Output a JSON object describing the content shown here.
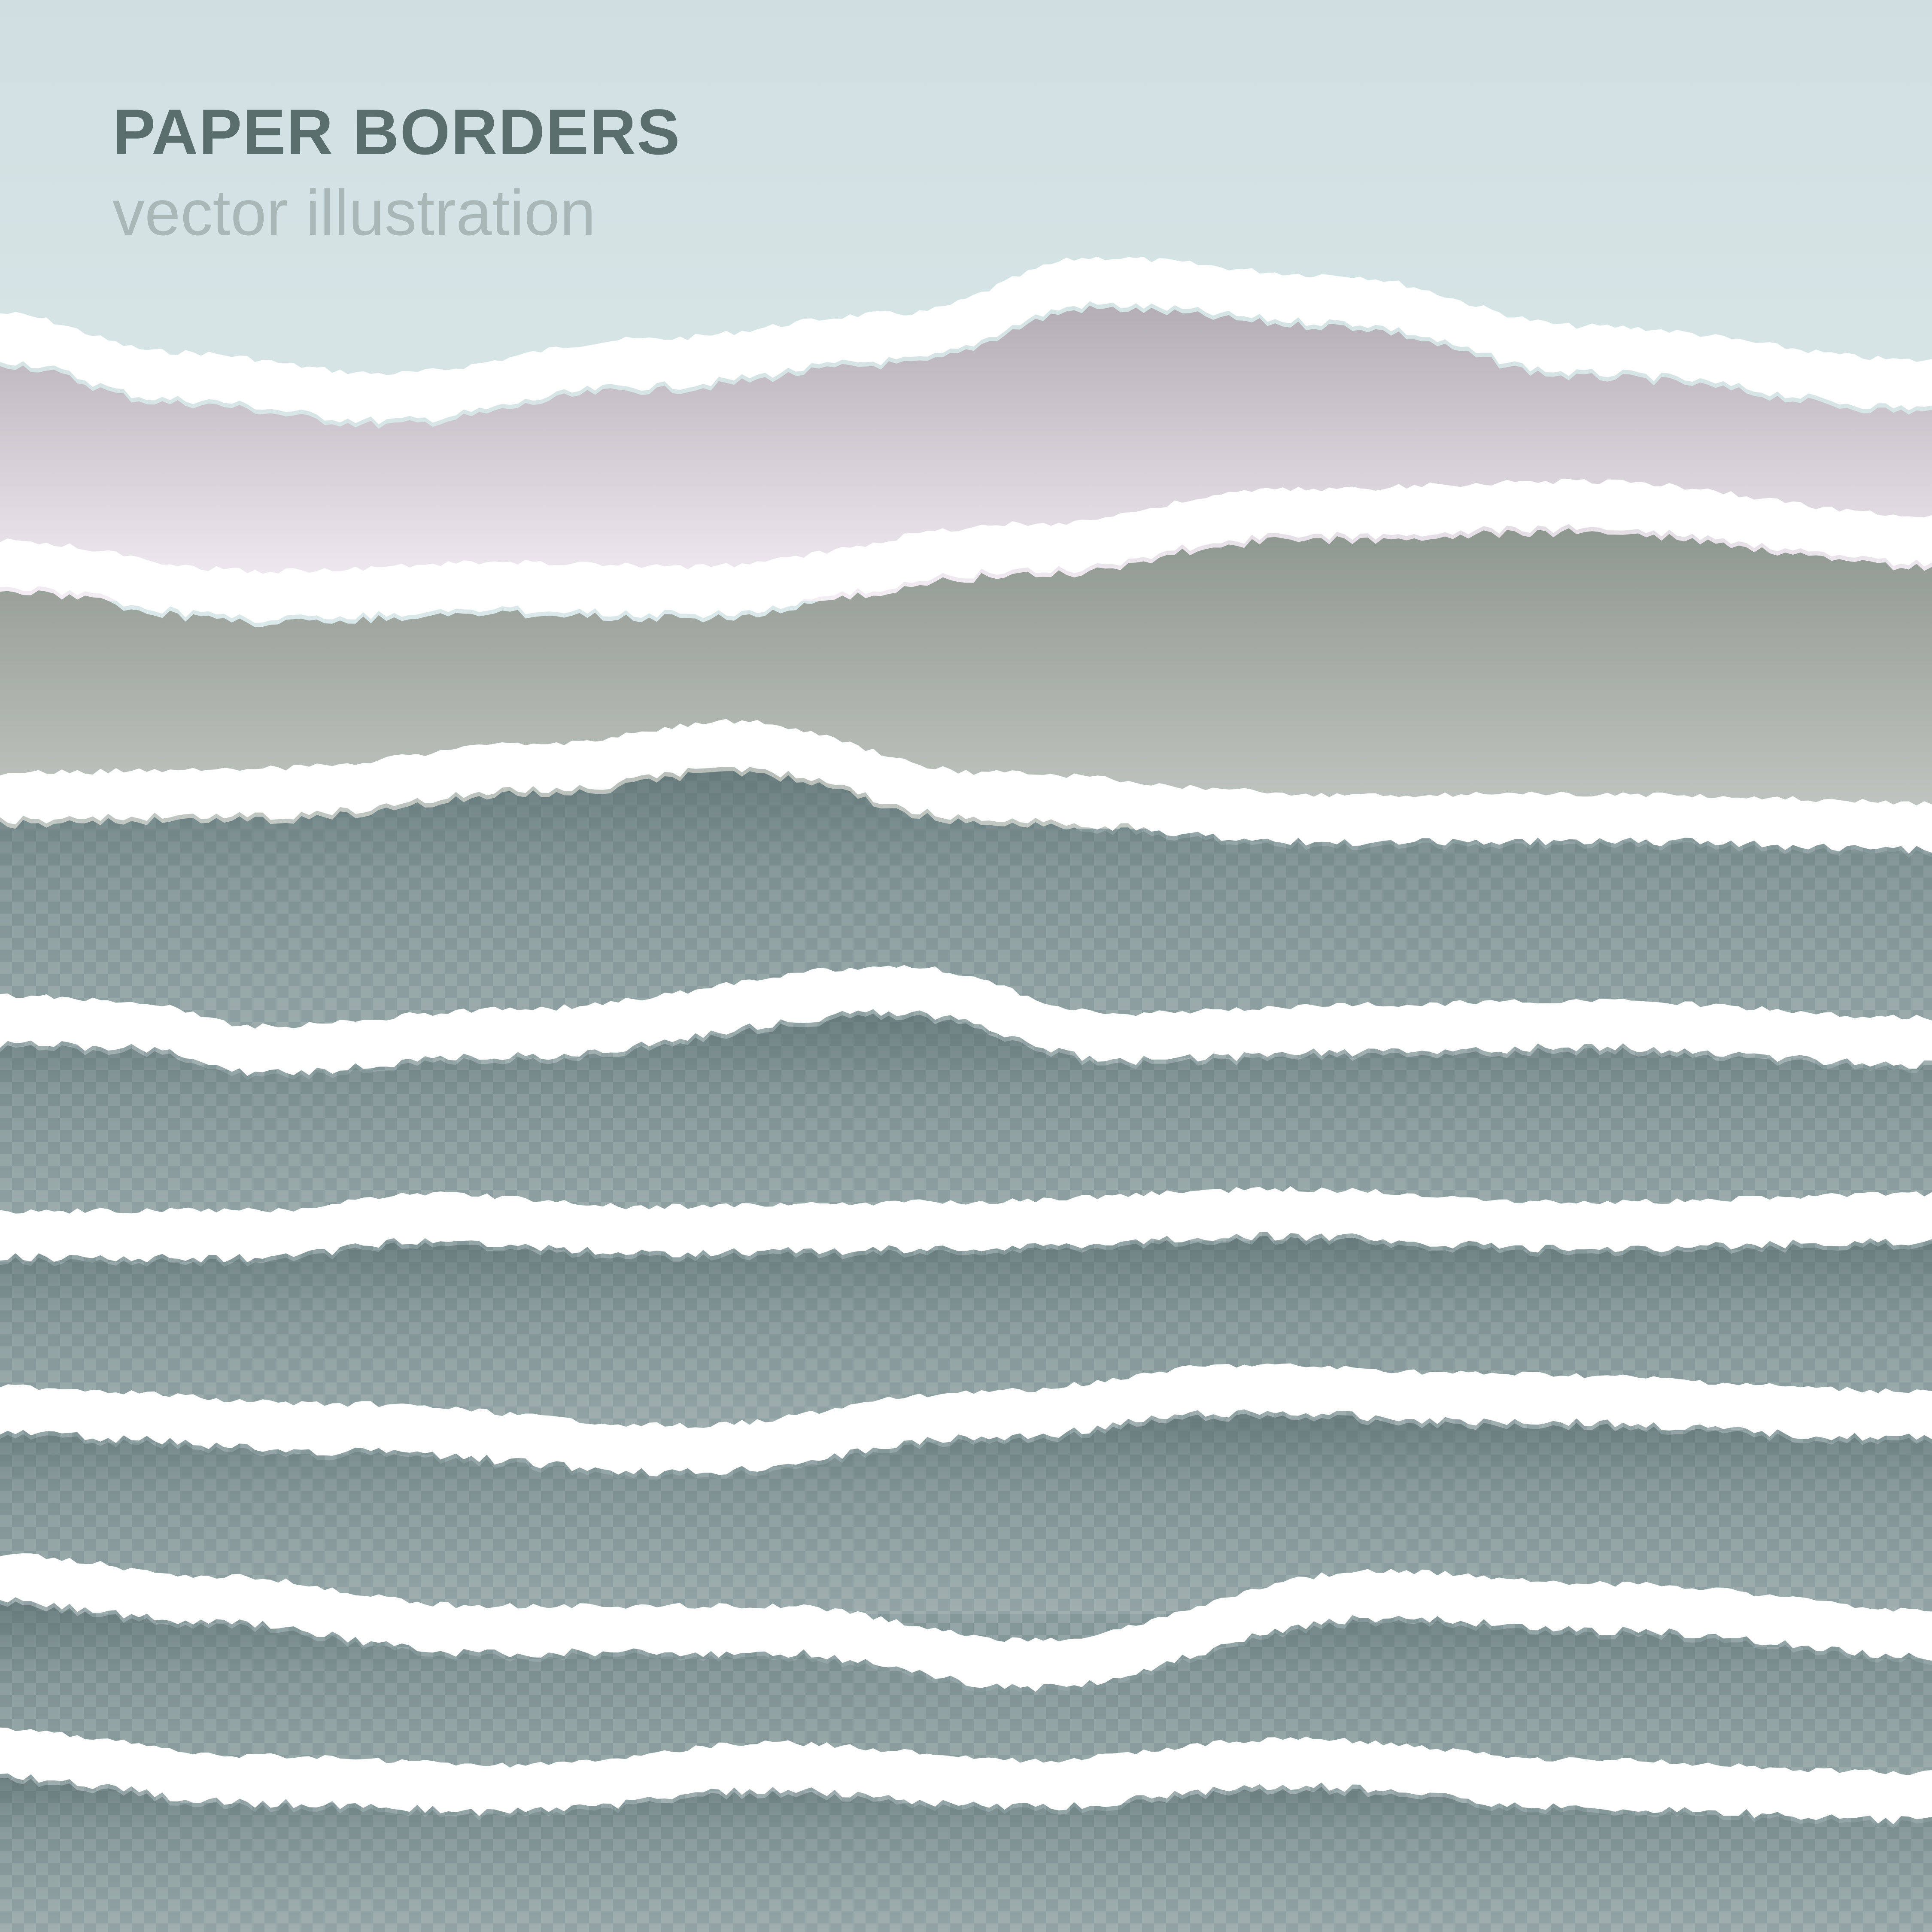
{
  "heading": "PAPER BORDERS",
  "subheading": "vector illustration",
  "colors": {
    "sky_top": "#cfdfe1",
    "sky_bottom": "#f5fbfb",
    "torn_edge": "#ffffff",
    "heading_text": "#5b6e6e",
    "subheading_text": "#a9b7b7",
    "strip_1": "#d6cfd6",
    "strip_2": "#a4aba4",
    "transparent_strips": "#7f9294"
  },
  "strips": [
    {
      "name": "lilac-paper-strip",
      "fill": "#d6cfd6"
    },
    {
      "name": "grey-paper-strip",
      "fill": "#a4aba4"
    },
    {
      "name": "transparent-paper-strip-1",
      "fill": "#7f9294"
    },
    {
      "name": "transparent-paper-strip-2",
      "fill": "#7f9294"
    },
    {
      "name": "transparent-paper-strip-3",
      "fill": "#7f9294"
    },
    {
      "name": "transparent-paper-strip-4",
      "fill": "#7f9294"
    },
    {
      "name": "transparent-paper-strip-5",
      "fill": "#7f9294"
    },
    {
      "name": "transparent-paper-strip-6",
      "fill": "#7f9294"
    }
  ]
}
